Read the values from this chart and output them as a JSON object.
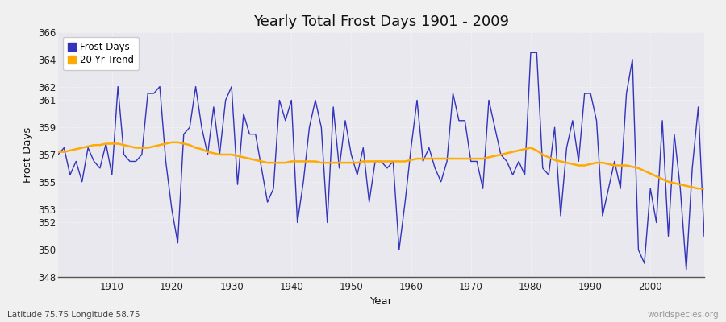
{
  "title": "Yearly Total Frost Days 1901 - 2009",
  "xlabel": "Year",
  "ylabel": "Frost Days",
  "lat_lon_label": "Latitude 75.75 Longitude 58.75",
  "watermark": "worldspecies.org",
  "frost_days_color": "#3333bb",
  "trend_color": "#ffaa00",
  "fig_bg_color": "#f0f0f0",
  "plot_bg_color": "#e8e8ee",
  "ylim": [
    348,
    366
  ],
  "xlim": [
    1901,
    2009
  ],
  "yticks": [
    348,
    350,
    352,
    353,
    355,
    357,
    359,
    361,
    362,
    364,
    366
  ],
  "xticks": [
    1910,
    1920,
    1930,
    1940,
    1950,
    1960,
    1970,
    1980,
    1990,
    2000
  ],
  "years": [
    1901,
    1902,
    1903,
    1904,
    1905,
    1906,
    1907,
    1908,
    1909,
    1910,
    1911,
    1912,
    1913,
    1914,
    1915,
    1916,
    1917,
    1918,
    1919,
    1920,
    1921,
    1922,
    1923,
    1924,
    1925,
    1926,
    1927,
    1928,
    1929,
    1930,
    1931,
    1932,
    1933,
    1934,
    1935,
    1936,
    1937,
    1938,
    1939,
    1940,
    1941,
    1942,
    1943,
    1944,
    1945,
    1946,
    1947,
    1948,
    1949,
    1950,
    1951,
    1952,
    1953,
    1954,
    1955,
    1956,
    1957,
    1958,
    1959,
    1960,
    1961,
    1962,
    1963,
    1964,
    1965,
    1966,
    1967,
    1968,
    1969,
    1970,
    1971,
    1972,
    1973,
    1974,
    1975,
    1976,
    1977,
    1978,
    1979,
    1980,
    1981,
    1982,
    1983,
    1984,
    1985,
    1986,
    1987,
    1988,
    1989,
    1990,
    1991,
    1992,
    1993,
    1994,
    1995,
    1996,
    1997,
    1998,
    1999,
    2000,
    2001,
    2002,
    2003,
    2004,
    2005,
    2006,
    2007,
    2008,
    2009
  ],
  "frost_days": [
    357.0,
    357.5,
    355.5,
    356.5,
    355.0,
    357.5,
    356.5,
    356.0,
    357.8,
    355.5,
    362.0,
    357.0,
    356.5,
    356.5,
    357.0,
    361.5,
    361.5,
    362.0,
    356.5,
    353.0,
    350.5,
    358.5,
    359.0,
    362.0,
    359.0,
    357.0,
    360.5,
    357.0,
    361.0,
    362.0,
    354.8,
    360.0,
    358.5,
    358.5,
    356.0,
    353.5,
    354.5,
    361.0,
    359.5,
    361.0,
    352.0,
    355.0,
    359.0,
    361.0,
    359.0,
    352.0,
    360.5,
    356.0,
    359.5,
    357.0,
    355.5,
    357.5,
    353.5,
    356.5,
    356.5,
    356.0,
    356.5,
    350.0,
    353.5,
    357.5,
    361.0,
    356.5,
    357.5,
    356.0,
    355.0,
    356.5,
    361.5,
    359.5,
    359.5,
    356.5,
    356.5,
    354.5,
    361.0,
    359.0,
    357.0,
    356.5,
    355.5,
    356.5,
    355.5,
    364.5,
    364.5,
    356.0,
    355.5,
    359.0,
    352.5,
    357.5,
    359.5,
    356.5,
    361.5,
    361.5,
    359.5,
    352.5,
    354.5,
    356.5,
    354.5,
    361.5,
    364.0,
    350.0,
    349.0,
    354.5,
    352.0,
    359.5,
    351.0,
    358.5,
    354.5,
    348.5,
    356.0,
    360.5,
    351.0
  ],
  "trend": [
    357.2,
    357.2,
    357.3,
    357.4,
    357.5,
    357.6,
    357.7,
    357.7,
    357.8,
    357.8,
    357.8,
    357.7,
    357.6,
    357.5,
    357.5,
    357.5,
    357.6,
    357.7,
    357.8,
    357.9,
    357.9,
    357.8,
    357.7,
    357.5,
    357.4,
    357.2,
    357.1,
    357.0,
    357.0,
    357.0,
    356.9,
    356.8,
    356.7,
    356.6,
    356.5,
    356.4,
    356.4,
    356.4,
    356.4,
    356.5,
    356.5,
    356.5,
    356.5,
    356.5,
    356.4,
    356.4,
    356.4,
    356.4,
    356.4,
    356.4,
    356.4,
    356.5,
    356.5,
    356.5,
    356.5,
    356.5,
    356.5,
    356.5,
    356.5,
    356.6,
    356.7,
    356.7,
    356.7,
    356.7,
    356.7,
    356.7,
    356.7,
    356.7,
    356.7,
    356.7,
    356.7,
    356.7,
    356.8,
    356.9,
    357.0,
    357.1,
    357.2,
    357.3,
    357.4,
    357.5,
    357.3,
    357.0,
    356.8,
    356.6,
    356.5,
    356.4,
    356.3,
    356.2,
    356.2,
    356.3,
    356.4,
    356.4,
    356.3,
    356.2,
    356.2,
    356.2,
    356.1,
    356.0,
    355.8,
    355.6,
    355.4,
    355.2,
    355.0,
    354.9,
    354.8,
    354.7,
    354.6,
    354.5,
    354.5
  ]
}
